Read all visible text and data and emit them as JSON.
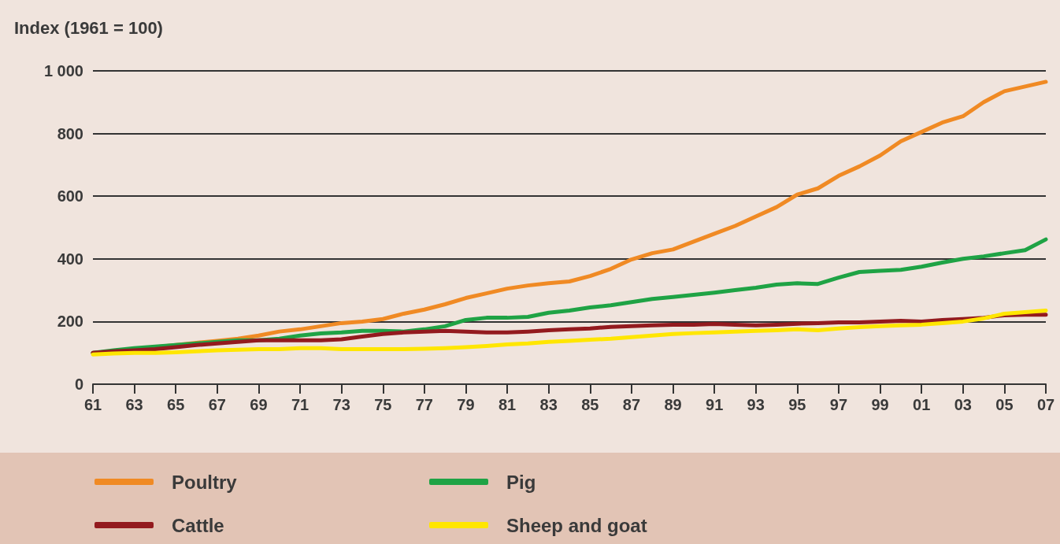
{
  "chart_data": {
    "type": "line",
    "ylabel": "Index (1961 = 100)",
    "categories": [
      "61",
      null,
      "63",
      null,
      "65",
      null,
      "67",
      null,
      "69",
      null,
      "71",
      null,
      "73",
      null,
      "75",
      null,
      "77",
      null,
      "79",
      null,
      "81",
      null,
      "83",
      null,
      "85",
      null,
      "87",
      null,
      "89",
      null,
      "91",
      null,
      "93",
      null,
      "95",
      null,
      "97",
      null,
      "99",
      null,
      "01",
      null,
      "03",
      null,
      "05",
      null,
      "07"
    ],
    "ylim": [
      0,
      1000
    ],
    "yticks": [
      0,
      200,
      400,
      600,
      800,
      {
        "value": 1000,
        "label": "1 000"
      }
    ],
    "grid": "y",
    "legend": "bottom",
    "marker": "none",
    "line_style": "solid",
    "series": [
      {
        "name": "Poultry",
        "color": "#f08a24",
        "values": [
          100,
          105,
          112,
          118,
          125,
          132,
          138,
          145,
          155,
          168,
          175,
          185,
          195,
          200,
          208,
          225,
          238,
          255,
          275,
          290,
          305,
          315,
          322,
          328,
          345,
          368,
          398,
          418,
          430,
          455,
          480,
          505,
          535,
          565,
          605,
          625,
          665,
          695,
          730,
          775,
          805,
          835,
          855,
          900,
          935,
          950,
          965
        ]
      },
      {
        "name": "Pig",
        "color": "#1fa345",
        "values": [
          100,
          108,
          115,
          120,
          125,
          130,
          135,
          140,
          140,
          145,
          155,
          162,
          165,
          170,
          170,
          168,
          175,
          185,
          205,
          212,
          212,
          215,
          228,
          235,
          245,
          252,
          262,
          272,
          278,
          285,
          292,
          300,
          308,
          318,
          322,
          320,
          340,
          358,
          362,
          365,
          375,
          388,
          400,
          408,
          418,
          428,
          462
        ]
      },
      {
        "name": "Cattle",
        "color": "#931a1e",
        "values": [
          100,
          105,
          108,
          112,
          118,
          125,
          130,
          135,
          140,
          140,
          140,
          140,
          143,
          152,
          160,
          165,
          168,
          170,
          168,
          165,
          165,
          168,
          172,
          175,
          178,
          183,
          185,
          188,
          190,
          190,
          192,
          190,
          188,
          190,
          193,
          195,
          197,
          197,
          200,
          202,
          200,
          205,
          208,
          212,
          220,
          222,
          222
        ]
      },
      {
        "name": "Sheep and goat",
        "color": "#ffe600",
        "values": [
          95,
          98,
          100,
          100,
          102,
          105,
          108,
          110,
          112,
          112,
          115,
          115,
          112,
          112,
          112,
          112,
          113,
          115,
          118,
          122,
          127,
          130,
          135,
          138,
          142,
          145,
          150,
          155,
          160,
          163,
          165,
          168,
          170,
          172,
          175,
          172,
          178,
          182,
          185,
          188,
          190,
          195,
          200,
          210,
          225,
          230,
          235
        ]
      }
    ]
  }
}
